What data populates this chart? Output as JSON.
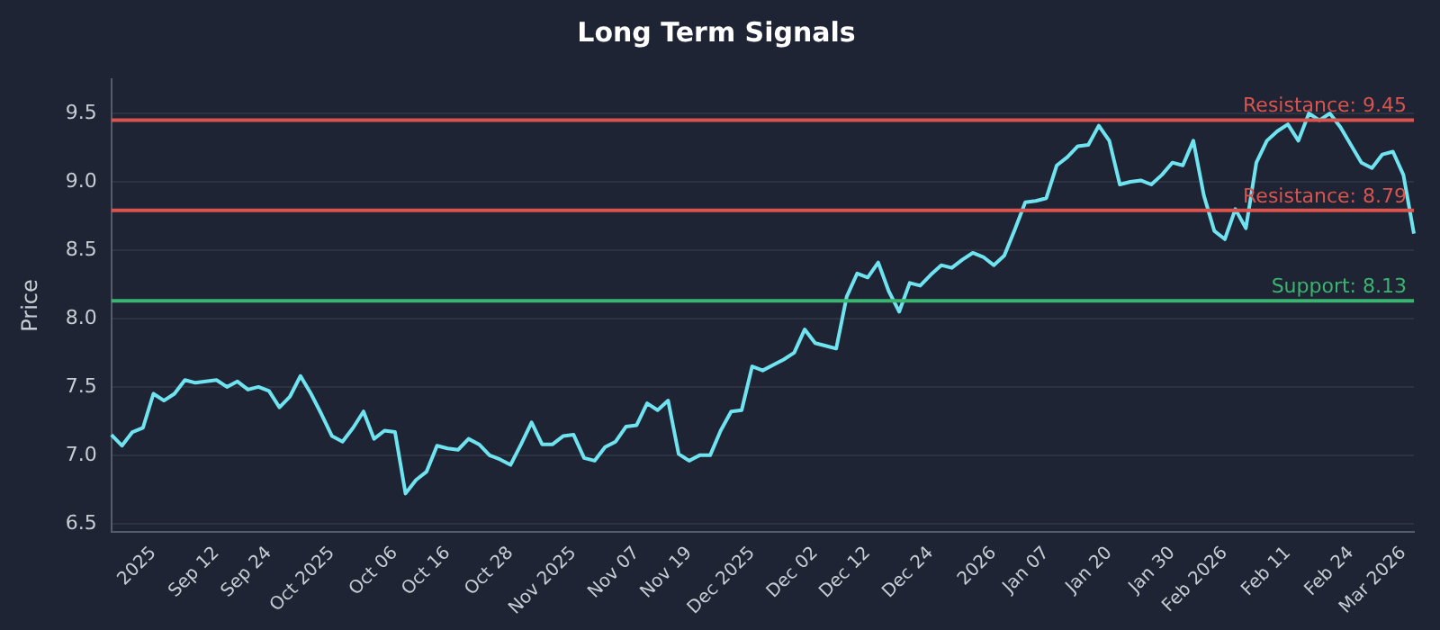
{
  "chart_data": {
    "type": "line",
    "title": "Long Term Signals",
    "ylabel": "Price",
    "categories": [
      null,
      null,
      null,
      null,
      "2025",
      null,
      null,
      null,
      null,
      null,
      "Sep 12",
      null,
      null,
      null,
      null,
      "Sep 24",
      null,
      null,
      null,
      null,
      null,
      "Oct 2025",
      null,
      null,
      null,
      null,
      null,
      "Oct 06",
      null,
      null,
      null,
      null,
      "Oct 16",
      null,
      null,
      null,
      null,
      null,
      "Oct 28",
      null,
      null,
      null,
      null,
      null,
      "Nov 2025",
      null,
      null,
      null,
      null,
      null,
      "Nov 07",
      null,
      null,
      null,
      null,
      "Nov 19",
      null,
      null,
      null,
      null,
      null,
      "Dec 2025",
      null,
      null,
      null,
      null,
      null,
      "Dec 02",
      null,
      null,
      null,
      null,
      "Dec 12",
      null,
      null,
      null,
      null,
      null,
      "Dec 24",
      null,
      null,
      null,
      null,
      null,
      "2026",
      null,
      null,
      null,
      null,
      "Jan 07",
      null,
      null,
      null,
      null,
      null,
      "Jan 20",
      null,
      null,
      null,
      null,
      null,
      "Jan 30",
      null,
      null,
      null,
      null,
      "Feb 2026",
      null,
      null,
      null,
      null,
      null,
      "Feb 11",
      null,
      null,
      null,
      null,
      null,
      "Feb 24",
      null,
      null,
      null,
      null,
      "Mar 2026",
      null
    ],
    "series": [
      {
        "color": "#6fe3f0",
        "values": [
          7.15,
          7.07,
          7.17,
          7.2,
          7.45,
          7.4,
          7.45,
          7.55,
          7.53,
          7.54,
          7.55,
          7.5,
          7.54,
          7.48,
          7.5,
          7.47,
          7.35,
          7.43,
          7.58,
          7.45,
          7.3,
          7.14,
          7.1,
          7.2,
          7.32,
          7.12,
          7.18,
          7.17,
          6.72,
          6.82,
          6.88,
          7.07,
          7.05,
          7.04,
          7.12,
          7.08,
          7.0,
          6.97,
          6.93,
          7.08,
          7.24,
          7.08,
          7.08,
          7.14,
          7.15,
          6.98,
          6.96,
          7.06,
          7.1,
          7.21,
          7.22,
          7.38,
          7.33,
          7.4,
          7.01,
          6.96,
          7.0,
          7.0,
          7.18,
          7.32,
          7.33,
          7.65,
          7.62,
          7.66,
          7.7,
          7.75,
          7.92,
          7.82,
          7.8,
          7.78,
          8.16,
          8.33,
          8.3,
          8.41,
          8.2,
          8.05,
          8.26,
          8.24,
          8.32,
          8.39,
          8.37,
          8.43,
          8.48,
          8.45,
          8.39,
          8.46,
          8.65,
          8.85,
          8.86,
          8.88,
          9.12,
          9.18,
          9.26,
          9.27,
          9.41,
          9.3,
          8.98,
          9.0,
          9.01,
          8.98,
          9.05,
          9.14,
          9.12,
          9.3,
          8.9,
          8.64,
          8.58,
          8.8,
          8.66,
          9.14,
          9.3,
          9.37,
          9.42,
          9.3,
          9.5,
          9.45,
          9.5,
          9.4,
          9.27,
          9.14,
          9.1,
          9.2,
          9.22,
          9.05,
          8.62
        ]
      }
    ],
    "ylim": [
      6.44,
      9.75
    ],
    "yticks": [
      {
        "value": 6.5,
        "label": "6.5"
      },
      {
        "value": 7,
        "label": "7.0"
      },
      {
        "value": 7.5,
        "label": "7.5"
      },
      {
        "value": 8,
        "label": "8.0"
      },
      {
        "value": 8.5,
        "label": "8.5"
      },
      {
        "value": 9,
        "label": "9.0"
      },
      {
        "value": 9.5,
        "label": "9.5"
      }
    ],
    "ref_lines": [
      {
        "axis": "y",
        "value": 9.45,
        "label": "Resistance: 9.45",
        "color": "#d9534f"
      },
      {
        "axis": "y",
        "value": 8.79,
        "label": "Resistance: 8.79",
        "color": "#d9534f"
      },
      {
        "axis": "y",
        "value": 8.13,
        "label": "Support: 8.13",
        "color": "#3cb371"
      }
    ],
    "grid": "y",
    "legend": false,
    "marker": "none",
    "line_style": "solid"
  }
}
